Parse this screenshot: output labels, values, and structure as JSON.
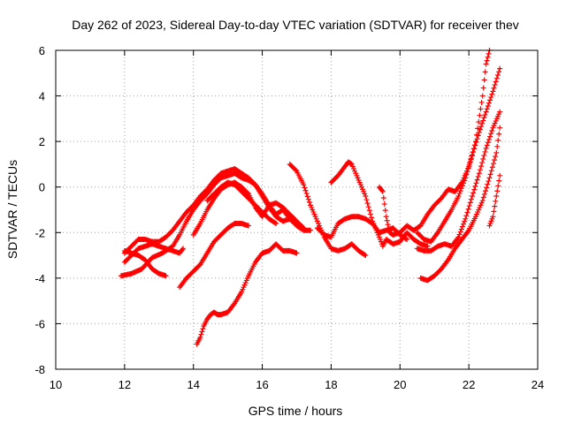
{
  "chart_data": {
    "type": "scatter",
    "title": "Day 262 of 2023, Sidereal Day-to-day VTEC variation (SDTVAR) for receiver thev",
    "xlabel": "GPS time / hours",
    "ylabel": "SDTVAR / TECUs",
    "xlim": [
      10,
      24
    ],
    "ylim": [
      -8,
      6
    ],
    "xticks": [
      10,
      12,
      14,
      16,
      18,
      20,
      22,
      24
    ],
    "yticks": [
      -8,
      -6,
      -4,
      -2,
      0,
      2,
      4,
      6
    ],
    "grid": true,
    "marker": "+",
    "color": "#ff0000",
    "series": [
      {
        "name": "track-1",
        "points": [
          [
            11.9,
            -3.9
          ],
          [
            12.2,
            -3.8
          ],
          [
            12.5,
            -3.6
          ],
          [
            12.8,
            -3.1
          ],
          [
            13.1,
            -2.9
          ],
          [
            13.4,
            -2.6
          ],
          [
            13.6,
            -2.1
          ],
          [
            13.8,
            -1.5
          ],
          [
            14.0,
            -1.0
          ],
          [
            14.2,
            -0.6
          ],
          [
            14.4,
            -0.3
          ],
          [
            14.6,
            0.1
          ],
          [
            14.8,
            0.4
          ],
          [
            15.0,
            0.5
          ],
          [
            15.2,
            0.6
          ],
          [
            15.4,
            0.4
          ],
          [
            15.6,
            0.3
          ],
          [
            15.8,
            0.1
          ],
          [
            16.0,
            -0.3
          ],
          [
            16.2,
            -0.8
          ],
          [
            16.4,
            -1.2
          ],
          [
            16.6,
            -1.0
          ],
          [
            16.8,
            -1.4
          ],
          [
            17.0,
            -1.7
          ],
          [
            17.2,
            -1.9
          ],
          [
            17.4,
            -1.9
          ]
        ]
      },
      {
        "name": "track-2",
        "points": [
          [
            12.0,
            -2.9
          ],
          [
            12.2,
            -2.6
          ],
          [
            12.4,
            -2.3
          ],
          [
            12.6,
            -2.3
          ],
          [
            12.8,
            -2.4
          ],
          [
            13.0,
            -2.4
          ],
          [
            13.2,
            -2.2
          ],
          [
            13.4,
            -1.9
          ],
          [
            13.6,
            -1.5
          ],
          [
            13.8,
            -1.1
          ],
          [
            14.0,
            -0.8
          ],
          [
            14.2,
            -0.4
          ],
          [
            14.4,
            -0.1
          ],
          [
            14.6,
            0.3
          ],
          [
            14.8,
            0.6
          ],
          [
            15.0,
            0.7
          ],
          [
            15.2,
            0.8
          ],
          [
            15.4,
            0.6
          ],
          [
            15.6,
            0.4
          ],
          [
            15.8,
            0.1
          ],
          [
            16.0,
            -0.4
          ],
          [
            16.2,
            -0.9
          ],
          [
            16.4,
            -1.3
          ],
          [
            16.6,
            -1.5
          ],
          [
            16.8,
            -1.4
          ],
          [
            17.0,
            -1.6
          ],
          [
            17.2,
            -1.8
          ]
        ]
      },
      {
        "name": "track-3",
        "points": [
          [
            12.0,
            -3.3
          ],
          [
            12.2,
            -3.0
          ],
          [
            12.4,
            -2.7
          ],
          [
            12.6,
            -2.6
          ],
          [
            12.8,
            -2.5
          ],
          [
            13.0,
            -2.6
          ],
          [
            13.2,
            -2.7
          ],
          [
            13.4,
            -2.8
          ],
          [
            13.6,
            -2.9
          ],
          [
            13.7,
            -2.7
          ]
        ]
      },
      {
        "name": "track-4",
        "points": [
          [
            12.0,
            -2.8
          ],
          [
            12.2,
            -2.9
          ],
          [
            12.4,
            -3.0
          ],
          [
            12.6,
            -3.2
          ],
          [
            12.8,
            -3.6
          ],
          [
            13.0,
            -3.8
          ],
          [
            13.2,
            -3.9
          ]
        ]
      },
      {
        "name": "track-5",
        "points": [
          [
            13.6,
            -4.4
          ],
          [
            13.8,
            -4.0
          ],
          [
            14.0,
            -3.7
          ],
          [
            14.2,
            -3.4
          ],
          [
            14.4,
            -2.9
          ],
          [
            14.6,
            -2.4
          ],
          [
            14.8,
            -2.1
          ],
          [
            15.0,
            -1.8
          ],
          [
            15.2,
            -1.6
          ],
          [
            15.4,
            -1.6
          ],
          [
            15.6,
            -1.7
          ]
        ]
      },
      {
        "name": "track-6",
        "points": [
          [
            14.1,
            -6.9
          ],
          [
            14.2,
            -6.6
          ],
          [
            14.3,
            -6.1
          ],
          [
            14.4,
            -5.8
          ],
          [
            14.5,
            -5.6
          ],
          [
            14.6,
            -5.5
          ],
          [
            14.7,
            -5.6
          ],
          [
            14.8,
            -5.6
          ],
          [
            15.0,
            -5.5
          ],
          [
            15.2,
            -5.1
          ],
          [
            15.4,
            -4.6
          ],
          [
            15.6,
            -3.9
          ],
          [
            15.8,
            -3.3
          ],
          [
            16.0,
            -2.9
          ],
          [
            16.2,
            -2.8
          ],
          [
            16.4,
            -2.5
          ],
          [
            16.6,
            -2.8
          ],
          [
            16.8,
            -2.8
          ],
          [
            17.0,
            -2.9
          ]
        ]
      },
      {
        "name": "track-7",
        "points": [
          [
            14.0,
            -2.1
          ],
          [
            14.2,
            -1.6
          ],
          [
            14.4,
            -1.0
          ],
          [
            14.6,
            -0.5
          ],
          [
            14.8,
            -0.1
          ],
          [
            15.0,
            0.1
          ],
          [
            15.2,
            0.2
          ],
          [
            15.4,
            0.0
          ],
          [
            15.6,
            -0.3
          ],
          [
            15.8,
            -0.9
          ],
          [
            16.0,
            -1.3
          ],
          [
            16.2,
            -0.8
          ],
          [
            16.4,
            -0.7
          ],
          [
            16.6,
            -0.9
          ],
          [
            16.8,
            -1.2
          ],
          [
            17.0,
            -1.5
          ],
          [
            17.2,
            -1.8
          ]
        ]
      },
      {
        "name": "track-8",
        "points": [
          [
            14.4,
            -0.6
          ],
          [
            14.6,
            -0.3
          ],
          [
            14.8,
            0.0
          ],
          [
            15.0,
            0.2
          ],
          [
            15.2,
            0.1
          ],
          [
            15.4,
            -0.2
          ],
          [
            15.6,
            -0.5
          ],
          [
            15.8,
            -0.8
          ],
          [
            16.0,
            -1.1
          ],
          [
            16.2,
            -1.4
          ],
          [
            16.4,
            -1.6
          ]
        ]
      },
      {
        "name": "track-9",
        "points": [
          [
            16.8,
            1.0
          ],
          [
            17.0,
            0.7
          ],
          [
            17.2,
            0.1
          ],
          [
            17.4,
            -0.8
          ],
          [
            17.6,
            -1.5
          ],
          [
            17.8,
            -2.2
          ],
          [
            18.0,
            -2.7
          ],
          [
            18.2,
            -2.8
          ],
          [
            18.4,
            -2.7
          ],
          [
            18.6,
            -2.5
          ],
          [
            18.8,
            -2.8
          ],
          [
            19.0,
            -3.0
          ]
        ]
      },
      {
        "name": "track-10",
        "points": [
          [
            17.6,
            -1.8
          ],
          [
            17.8,
            -2.1
          ],
          [
            18.0,
            -2.2
          ],
          [
            18.2,
            -1.6
          ],
          [
            18.4,
            -1.4
          ],
          [
            18.6,
            -1.3
          ],
          [
            18.8,
            -1.3
          ],
          [
            19.0,
            -1.4
          ],
          [
            19.2,
            -1.6
          ],
          [
            19.4,
            -2.0
          ],
          [
            19.6,
            -1.9
          ],
          [
            19.8,
            -1.8
          ],
          [
            20.0,
            -2.1
          ],
          [
            20.2,
            -2.3
          ]
        ]
      },
      {
        "name": "track-11",
        "points": [
          [
            18.0,
            0.2
          ],
          [
            18.2,
            0.5
          ],
          [
            18.4,
            0.9
          ],
          [
            18.5,
            1.1
          ],
          [
            18.6,
            1.0
          ],
          [
            18.8,
            0.3
          ],
          [
            19.0,
            -0.4
          ],
          [
            19.2,
            -1.5
          ],
          [
            19.4,
            -2.2
          ],
          [
            19.5,
            -2.6
          ],
          [
            19.6,
            -2.3
          ],
          [
            19.8,
            -2.5
          ],
          [
            20.0,
            -2.4
          ],
          [
            20.2,
            -2.0
          ],
          [
            20.4,
            -2.3
          ],
          [
            20.6,
            -2.5
          ],
          [
            20.8,
            -2.6
          ]
        ]
      },
      {
        "name": "track-12",
        "points": [
          [
            19.4,
            0.0
          ],
          [
            19.5,
            -0.2
          ],
          [
            19.6,
            -1.3
          ],
          [
            19.7,
            -2.0
          ],
          [
            19.8,
            -2.1
          ],
          [
            20.0,
            -2.0
          ],
          [
            20.2,
            -1.7
          ],
          [
            20.4,
            -1.9
          ],
          [
            20.6,
            -1.7
          ],
          [
            20.8,
            -1.2
          ],
          [
            21.0,
            -0.8
          ],
          [
            21.2,
            -0.5
          ],
          [
            21.4,
            -0.1
          ],
          [
            21.6,
            -0.2
          ],
          [
            21.8,
            0.2
          ],
          [
            22.0,
            0.9
          ],
          [
            22.2,
            2.0
          ],
          [
            22.4,
            4.0
          ],
          [
            22.5,
            5.4
          ],
          [
            22.6,
            6.0
          ]
        ]
      },
      {
        "name": "track-13",
        "points": [
          [
            20.5,
            -2.0
          ],
          [
            20.7,
            -2.3
          ],
          [
            20.9,
            -2.4
          ],
          [
            21.1,
            -2.0
          ],
          [
            21.3,
            -1.5
          ],
          [
            21.5,
            -1.0
          ],
          [
            21.7,
            -0.4
          ],
          [
            21.9,
            0.4
          ],
          [
            22.1,
            1.4
          ],
          [
            22.3,
            2.4
          ],
          [
            22.5,
            3.3
          ],
          [
            22.7,
            4.2
          ],
          [
            22.9,
            5.2
          ]
        ]
      },
      {
        "name": "track-14",
        "points": [
          [
            20.6,
            -4.0
          ],
          [
            20.8,
            -4.1
          ],
          [
            21.0,
            -3.9
          ],
          [
            21.2,
            -3.6
          ],
          [
            21.4,
            -3.2
          ],
          [
            21.6,
            -2.7
          ],
          [
            21.8,
            -2.3
          ],
          [
            22.0,
            -1.9
          ],
          [
            22.2,
            -1.3
          ],
          [
            22.4,
            -0.6
          ],
          [
            22.6,
            0.4
          ],
          [
            22.8,
            1.5
          ],
          [
            22.9,
            2.6
          ]
        ]
      },
      {
        "name": "track-15",
        "points": [
          [
            20.5,
            -2.7
          ],
          [
            20.7,
            -2.8
          ],
          [
            20.9,
            -2.8
          ],
          [
            21.1,
            -2.6
          ],
          [
            21.3,
            -2.5
          ],
          [
            21.5,
            -2.6
          ],
          [
            21.7,
            -2.2
          ],
          [
            21.9,
            -1.4
          ],
          [
            22.1,
            -0.4
          ],
          [
            22.3,
            0.6
          ],
          [
            22.5,
            1.7
          ],
          [
            22.7,
            2.6
          ],
          [
            22.9,
            3.3
          ]
        ]
      },
      {
        "name": "track-16",
        "points": [
          [
            22.6,
            -1.7
          ],
          [
            22.7,
            -1.3
          ],
          [
            22.8,
            -0.4
          ],
          [
            22.9,
            0.5
          ]
        ]
      }
    ]
  }
}
